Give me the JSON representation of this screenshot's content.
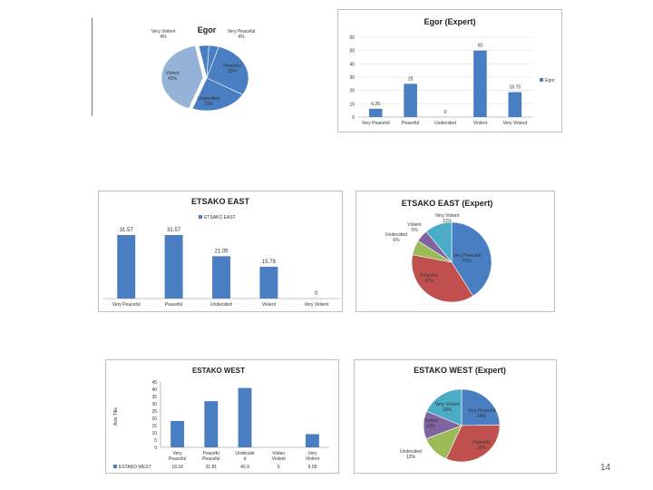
{
  "page_number": "14",
  "colors": {
    "bar": "#4a7ec2",
    "pie_blue": "#4a7ec2",
    "pie_red": "#c0504d",
    "pie_green": "#9bbb59",
    "pie_purple": "#8064a2",
    "pie_cyan": "#4bacc6",
    "pie_lightblue": "#95b3d7"
  },
  "chart_data": [
    {
      "type": "pie",
      "title": "Egor",
      "labels": [
        "Very Peaceful",
        "Peaceful",
        "Undecided",
        "Violent",
        "Very Violent"
      ],
      "values": [
        4,
        30,
        23,
        43,
        4
      ],
      "label_texts": [
        "Very Peaceful 4%",
        "Peaceful 30%",
        "Undecided 23%",
        "Violent 43%",
        "Very Violent 4%"
      ]
    },
    {
      "type": "bar",
      "title": "Egor (Expert)",
      "categories": [
        "Very Peaceful",
        "Peaceful",
        "Undecided",
        "Violent",
        "Very Violent"
      ],
      "values": [
        6.25,
        25,
        0,
        50,
        18.75
      ],
      "value_labels": [
        "6.25",
        "25",
        "0",
        "50",
        "18.75"
      ],
      "ylim": [
        0,
        60
      ],
      "yticks": [
        "0",
        "10",
        "20",
        "30",
        "40",
        "50",
        "60"
      ],
      "legend": "Egor",
      "legend_position": "right",
      "grid": true
    },
    {
      "type": "bar",
      "title": "ETSAKO EAST",
      "categories": [
        "Very Peaceful",
        "Peaceful",
        "Undecided",
        "Violent",
        "Very Violent"
      ],
      "values": [
        31.57,
        31.57,
        21.05,
        15.78,
        0
      ],
      "value_labels": [
        "31.57",
        "31.57",
        "21.05",
        "15.78",
        "0"
      ],
      "legend": "ETSAKO EAST",
      "legend_position": "top",
      "grid": false
    },
    {
      "type": "pie",
      "title": "ETSAKO EAST (Expert)",
      "labels": [
        "Very Peaceful",
        "Peaceful",
        "Undecided",
        "Violent",
        "Very Violent"
      ],
      "values": [
        41,
        37,
        6,
        5,
        11
      ],
      "label_texts": [
        "Very Peaceful 41%",
        "Peaceful 37%",
        "Undecided 6%",
        "Violent 5%",
        "Very Violent 11%"
      ]
    },
    {
      "type": "bar",
      "title": "ESTAKO WEST",
      "categories": [
        "Very Peaceful",
        "Peaceful",
        "Undecided",
        "Violent",
        "Very Violent"
      ],
      "category_labels": [
        "Very Peaceful",
        "Peaceful",
        "Undecide d",
        "Violent",
        "Very Violent"
      ],
      "values": [
        18.18,
        31.81,
        40.9,
        0,
        9.09
      ],
      "table_values": [
        "18.18",
        "31.81",
        "40.9",
        "0",
        "9.09"
      ],
      "ylim": [
        0,
        45
      ],
      "yticks": [
        "0",
        "5",
        "10",
        "15",
        "20",
        "25",
        "30",
        "35",
        "40",
        "45"
      ],
      "ylabel": "Axis Title",
      "legend": "ESTAKO WEST",
      "grid": false
    },
    {
      "type": "pie",
      "title": "ESTAKO WEST (Expert)",
      "labels": [
        "Very Peaceful",
        "Peaceful",
        "Undecided",
        "Violent",
        "Very Violent"
      ],
      "values": [
        24,
        31,
        12,
        12,
        18
      ],
      "label_texts": [
        "Very Peaceful 24%",
        "Peaceful 31%",
        "Undecided 12%",
        "Violent 12%",
        "Very Violent 18%"
      ]
    }
  ]
}
